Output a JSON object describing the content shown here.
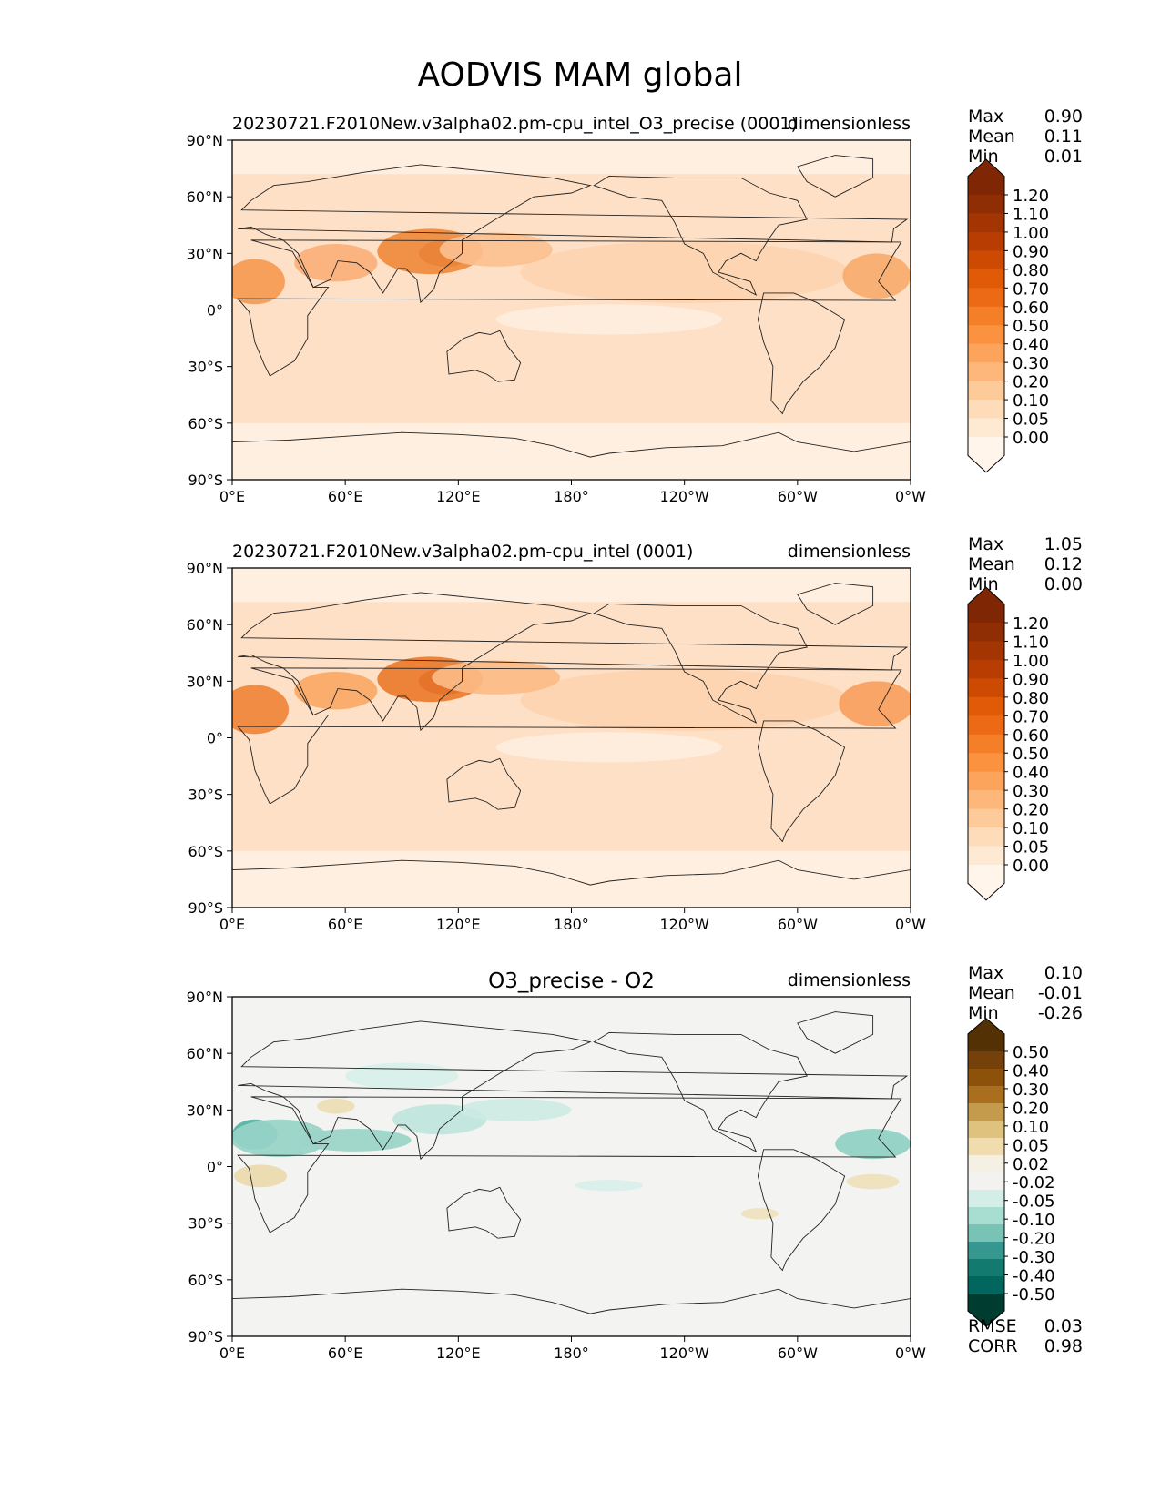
{
  "figure": {
    "title": "AODVIS MAM global"
  },
  "chart_data": [
    {
      "type": "heatmap",
      "title": "20230721.F2010New.v3alpha02.pm-cpu_intel_O3_precise (0001)",
      "units": "dimensionless",
      "xlabel": "",
      "ylabel": "",
      "xlim": [
        0,
        360
      ],
      "ylim": [
        -90,
        90
      ],
      "xticks": [
        "0°E",
        "60°E",
        "120°E",
        "180°",
        "120°W",
        "60°W",
        "0°W"
      ],
      "yticks": [
        "90°N",
        "60°N",
        "30°N",
        "0°",
        "30°S",
        "60°S",
        "90°S"
      ],
      "stats": [
        {
          "label": "Max",
          "value": "0.90"
        },
        {
          "label": "Mean",
          "value": "0.11"
        },
        {
          "label": "Min",
          "value": "0.01"
        }
      ],
      "colorbar": {
        "levels": [
          "1.20",
          "1.10",
          "1.00",
          "0.90",
          "0.80",
          "0.70",
          "0.60",
          "0.50",
          "0.40",
          "0.30",
          "0.20",
          "0.10",
          "0.05",
          "0.00"
        ],
        "colors": [
          "#7f2704",
          "#8f2e05",
          "#a33503",
          "#b83d02",
          "#cc4a02",
          "#e05a08",
          "#ec6a15",
          "#f57e28",
          "#fa9240",
          "#fda45c",
          "#fdb77b",
          "#fdca99",
          "#fedcb9",
          "#fee9d3",
          "#fff5eb"
        ]
      },
      "background": "#fee0c6",
      "hotspots": [
        {
          "lon": 113,
          "lat": 30,
          "rx": 14,
          "ry": 7,
          "value": 0.9,
          "color": "#a33503"
        },
        {
          "lon": 105,
          "lat": 31,
          "rx": 28,
          "ry": 12,
          "value": 0.55,
          "color": "#f08a3c"
        },
        {
          "lon": 12,
          "lat": 15,
          "rx": 16,
          "ry": 12,
          "value": 0.5,
          "color": "#f59a52"
        },
        {
          "lon": 55,
          "lat": 25,
          "rx": 22,
          "ry": 10,
          "value": 0.35,
          "color": "#fbb07a"
        },
        {
          "lon": 140,
          "lat": 32,
          "rx": 30,
          "ry": 9,
          "value": 0.3,
          "color": "#fcc08f"
        },
        {
          "lon": 342,
          "lat": 18,
          "rx": 18,
          "ry": 12,
          "value": 0.35,
          "color": "#f9ab6e"
        },
        {
          "lon": 200,
          "lat": -5,
          "rx": 60,
          "ry": 8,
          "value": 0.05,
          "color": "#feeedd"
        }
      ]
    },
    {
      "type": "heatmap",
      "title": "20230721.F2010New.v3alpha02.pm-cpu_intel (0001)",
      "units": "dimensionless",
      "xlabel": "",
      "ylabel": "",
      "xlim": [
        0,
        360
      ],
      "ylim": [
        -90,
        90
      ],
      "xticks": [
        "0°E",
        "60°E",
        "120°E",
        "180°",
        "120°W",
        "60°W",
        "0°W"
      ],
      "yticks": [
        "90°N",
        "60°N",
        "30°N",
        "0°",
        "30°S",
        "60°S",
        "90°S"
      ],
      "stats": [
        {
          "label": "Max",
          "value": "1.05"
        },
        {
          "label": "Mean",
          "value": "0.12"
        },
        {
          "label": "Min",
          "value": "0.00"
        }
      ],
      "colorbar": {
        "levels": [
          "1.20",
          "1.10",
          "1.00",
          "0.90",
          "0.80",
          "0.70",
          "0.60",
          "0.50",
          "0.40",
          "0.30",
          "0.20",
          "0.10",
          "0.05",
          "0.00"
        ],
        "colors": [
          "#7f2704",
          "#8f2e05",
          "#a33503",
          "#b83d02",
          "#cc4a02",
          "#e05a08",
          "#ec6a15",
          "#f57e28",
          "#fa9240",
          "#fda45c",
          "#fdb77b",
          "#fdca99",
          "#fedcb9",
          "#fee9d3",
          "#fff5eb"
        ]
      },
      "background": "#fee0c6",
      "hotspots": [
        {
          "lon": 113,
          "lat": 30,
          "rx": 14,
          "ry": 7,
          "value": 1.0,
          "color": "#8f2e05"
        },
        {
          "lon": 105,
          "lat": 31,
          "rx": 28,
          "ry": 12,
          "value": 0.6,
          "color": "#ec7a2c"
        },
        {
          "lon": 12,
          "lat": 15,
          "rx": 18,
          "ry": 13,
          "value": 0.6,
          "color": "#f08438"
        },
        {
          "lon": 55,
          "lat": 25,
          "rx": 22,
          "ry": 10,
          "value": 0.4,
          "color": "#fba866"
        },
        {
          "lon": 140,
          "lat": 32,
          "rx": 34,
          "ry": 9,
          "value": 0.3,
          "color": "#fcbb86"
        },
        {
          "lon": 342,
          "lat": 18,
          "rx": 20,
          "ry": 12,
          "value": 0.45,
          "color": "#f9a060"
        },
        {
          "lon": 200,
          "lat": -5,
          "rx": 60,
          "ry": 8,
          "value": 0.05,
          "color": "#feeedd"
        }
      ]
    },
    {
      "type": "heatmap",
      "title": "O3_precise - O2",
      "units": "dimensionless",
      "xlabel": "",
      "ylabel": "",
      "xlim": [
        0,
        360
      ],
      "ylim": [
        -90,
        90
      ],
      "xticks": [
        "0°E",
        "60°E",
        "120°E",
        "180°",
        "120°W",
        "60°W",
        "0°W"
      ],
      "yticks": [
        "90°N",
        "60°N",
        "30°N",
        "0°",
        "30°S",
        "60°S",
        "90°S"
      ],
      "stats": [
        {
          "label": "Max",
          "value": "0.10"
        },
        {
          "label": "Mean",
          "value": "-0.01"
        },
        {
          "label": "Min",
          "value": "-0.26"
        }
      ],
      "metrics": [
        {
          "label": "RMSE",
          "value": "0.03"
        },
        {
          "label": "CORR",
          "value": "0.98"
        }
      ],
      "colorbar": {
        "levels": [
          "0.50",
          "0.40",
          "0.30",
          "0.20",
          "0.10",
          "0.05",
          "0.02",
          "-0.02",
          "-0.05",
          "-0.10",
          "-0.20",
          "-0.30",
          "-0.40",
          "-0.50"
        ],
        "colors": [
          "#543005",
          "#734109",
          "#8c510a",
          "#a96f1f",
          "#c49a4c",
          "#dfc27d",
          "#f0dcae",
          "#f5f0e4",
          "#f2f2f0",
          "#d5ede7",
          "#a8ddd2",
          "#78c2b6",
          "#35978f",
          "#137a70",
          "#01665e",
          "#003c30"
        ]
      },
      "background": "#f3f4f2",
      "hotspots": [
        {
          "lon": 12,
          "lat": 17,
          "rx": 12,
          "ry": 8,
          "value": -0.2,
          "color": "#55b0a5"
        },
        {
          "lon": 25,
          "lat": 15,
          "rx": 26,
          "ry": 10,
          "value": -0.1,
          "color": "#98d3c7"
        },
        {
          "lon": 65,
          "lat": 14,
          "rx": 30,
          "ry": 6,
          "value": -0.1,
          "color": "#9ad4c8"
        },
        {
          "lon": 110,
          "lat": 25,
          "rx": 25,
          "ry": 8,
          "value": -0.05,
          "color": "#bfe5dc"
        },
        {
          "lon": 150,
          "lat": 30,
          "rx": 30,
          "ry": 6,
          "value": -0.05,
          "color": "#cdeae3"
        },
        {
          "lon": 90,
          "lat": 48,
          "rx": 30,
          "ry": 7,
          "value": -0.02,
          "color": "#d8efea"
        },
        {
          "lon": 340,
          "lat": 12,
          "rx": 20,
          "ry": 8,
          "value": -0.1,
          "color": "#8fcfc2"
        },
        {
          "lon": 15,
          "lat": -5,
          "rx": 14,
          "ry": 6,
          "value": 0.05,
          "color": "#ecd9ad"
        },
        {
          "lon": 55,
          "lat": 32,
          "rx": 10,
          "ry": 4,
          "value": 0.05,
          "color": "#eddcb2"
        },
        {
          "lon": 200,
          "lat": -10,
          "rx": 18,
          "ry": 3,
          "value": -0.02,
          "color": "#d9efe9"
        },
        {
          "lon": 280,
          "lat": -25,
          "rx": 10,
          "ry": 3,
          "value": 0.05,
          "color": "#efe1bd"
        },
        {
          "lon": 340,
          "lat": -8,
          "rx": 14,
          "ry": 4,
          "value": 0.05,
          "color": "#eee0bb"
        }
      ]
    }
  ]
}
